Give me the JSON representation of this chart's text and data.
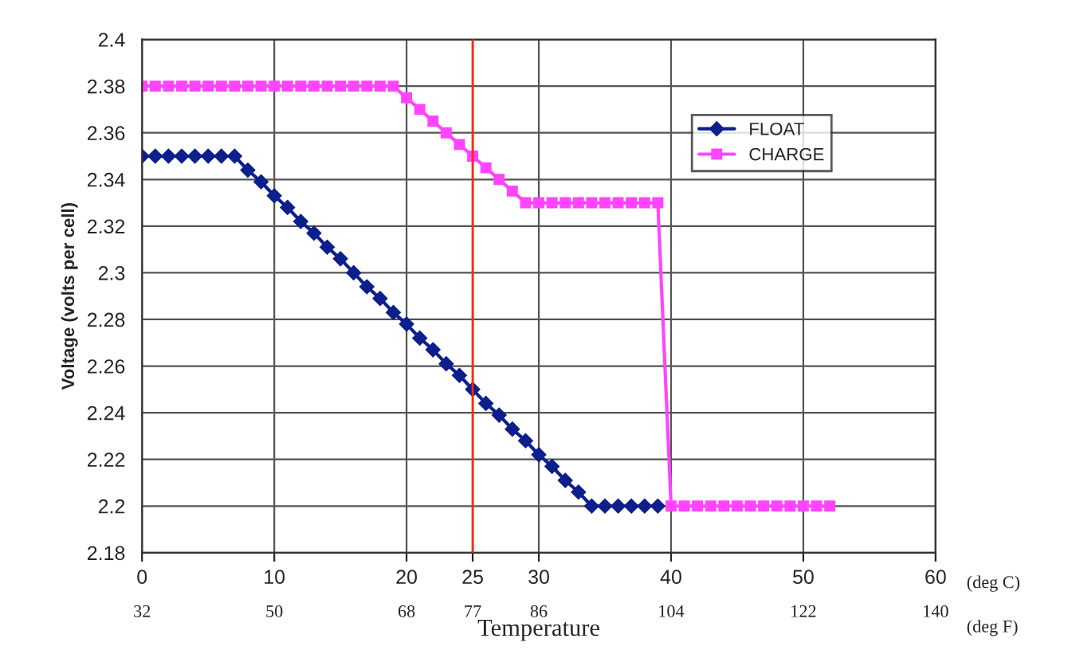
{
  "chart_data": {
    "type": "line",
    "xlabel": "Temperature",
    "ylabel": "Voltage (volts per cell)",
    "xlim": [
      0,
      60
    ],
    "xticks": [
      0,
      10,
      20,
      25,
      30,
      40,
      50,
      60
    ],
    "x2lim": [
      32,
      140
    ],
    "x2ticks": [
      32,
      50,
      68,
      77,
      86,
      104,
      122,
      140
    ],
    "ylim": [
      2.18,
      2.4
    ],
    "yticks": [
      2.18,
      2.2,
      2.22,
      2.24,
      2.26,
      2.28,
      2.3,
      2.32,
      2.34,
      2.36,
      2.38,
      2.4
    ],
    "grid": true,
    "legend": "top right",
    "annotations": [
      "(deg C)",
      "(deg F)"
    ],
    "ref_lines": [
      {
        "axis": "x",
        "value": 25,
        "color": "#ff2a00"
      }
    ],
    "series": [
      {
        "name": "FLOAT",
        "color": "#0d1f8c",
        "marker": "diamond",
        "x": [
          0,
          1,
          2,
          3,
          4,
          5,
          6,
          7,
          8,
          9,
          10,
          11,
          12,
          13,
          14,
          15,
          16,
          17,
          18,
          19,
          20,
          21,
          22,
          23,
          24,
          25,
          26,
          27,
          28,
          29,
          30,
          31,
          32,
          33,
          34,
          35,
          36,
          37,
          38,
          39
        ],
        "values": [
          2.35,
          2.35,
          2.35,
          2.35,
          2.35,
          2.35,
          2.35,
          2.35,
          2.344,
          2.339,
          2.333,
          2.328,
          2.322,
          2.317,
          2.311,
          2.306,
          2.3,
          2.294,
          2.289,
          2.283,
          2.278,
          2.272,
          2.267,
          2.261,
          2.256,
          2.25,
          2.244,
          2.239,
          2.233,
          2.228,
          2.222,
          2.217,
          2.211,
          2.206,
          2.2,
          2.2,
          2.2,
          2.2,
          2.2,
          2.2
        ]
      },
      {
        "name": "CHARGE",
        "color": "#ff44ff",
        "marker": "square",
        "x": [
          0,
          1,
          2,
          3,
          4,
          5,
          6,
          7,
          8,
          9,
          10,
          11,
          12,
          13,
          14,
          15,
          16,
          17,
          18,
          19,
          20,
          21,
          22,
          23,
          24,
          25,
          26,
          27,
          28,
          29,
          30,
          31,
          32,
          33,
          34,
          35,
          36,
          37,
          38,
          39,
          40,
          41,
          42,
          43,
          44,
          45,
          46,
          47,
          48,
          49,
          50,
          51,
          52
        ],
        "values": [
          2.38,
          2.38,
          2.38,
          2.38,
          2.38,
          2.38,
          2.38,
          2.38,
          2.38,
          2.38,
          2.38,
          2.38,
          2.38,
          2.38,
          2.38,
          2.38,
          2.38,
          2.38,
          2.38,
          2.38,
          2.375,
          2.37,
          2.365,
          2.36,
          2.355,
          2.35,
          2.345,
          2.34,
          2.335,
          2.33,
          2.33,
          2.33,
          2.33,
          2.33,
          2.33,
          2.33,
          2.33,
          2.33,
          2.33,
          2.33,
          2.2,
          2.2,
          2.2,
          2.2,
          2.2,
          2.2,
          2.2,
          2.2,
          2.2,
          2.2,
          2.2,
          2.2,
          2.2
        ]
      }
    ]
  }
}
